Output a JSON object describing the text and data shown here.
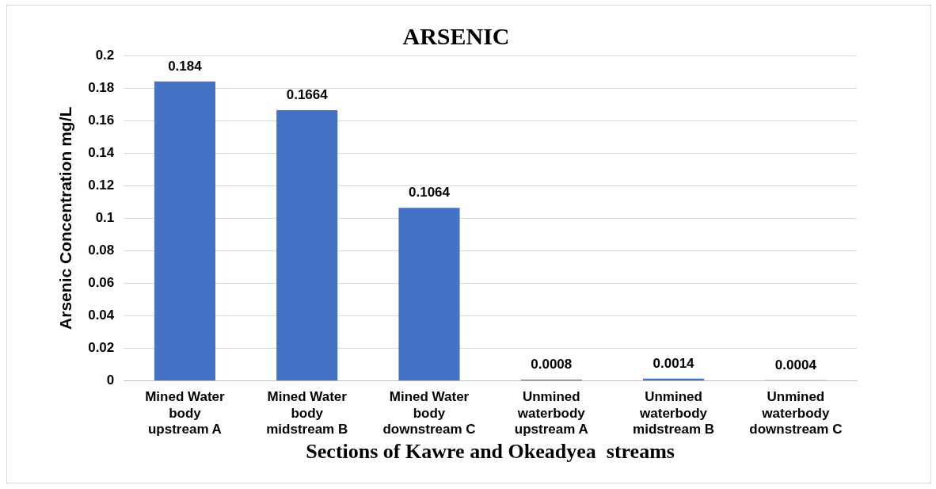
{
  "chart_data": {
    "type": "bar",
    "title": "ARSENIC",
    "xlabel": "Sections of Kawre and Okeadyea  streams",
    "ylabel": "Arsenic Concentration mg/L",
    "categories": [
      "Mined Water\nbody\nupstream A",
      "Mined Water\nbody\nmidstream B",
      "Mined Water\nbody\ndownstream C",
      "Unmined\nwaterbody\nupstream A",
      "Unmined\nwaterbody\nmidstream B",
      "Unmined\nwaterbody\ndownstream C"
    ],
    "values": [
      0.184,
      0.1664,
      0.1064,
      0.0008,
      0.0014,
      0.0004
    ],
    "color": "#4472c4",
    "ylim": [
      0,
      0.2
    ],
    "yticks": [
      0,
      0.02,
      0.04,
      0.06,
      0.08,
      0.1,
      0.12,
      0.14,
      0.16,
      0.18,
      0.2
    ],
    "grid": "y",
    "data_labels": true
  }
}
